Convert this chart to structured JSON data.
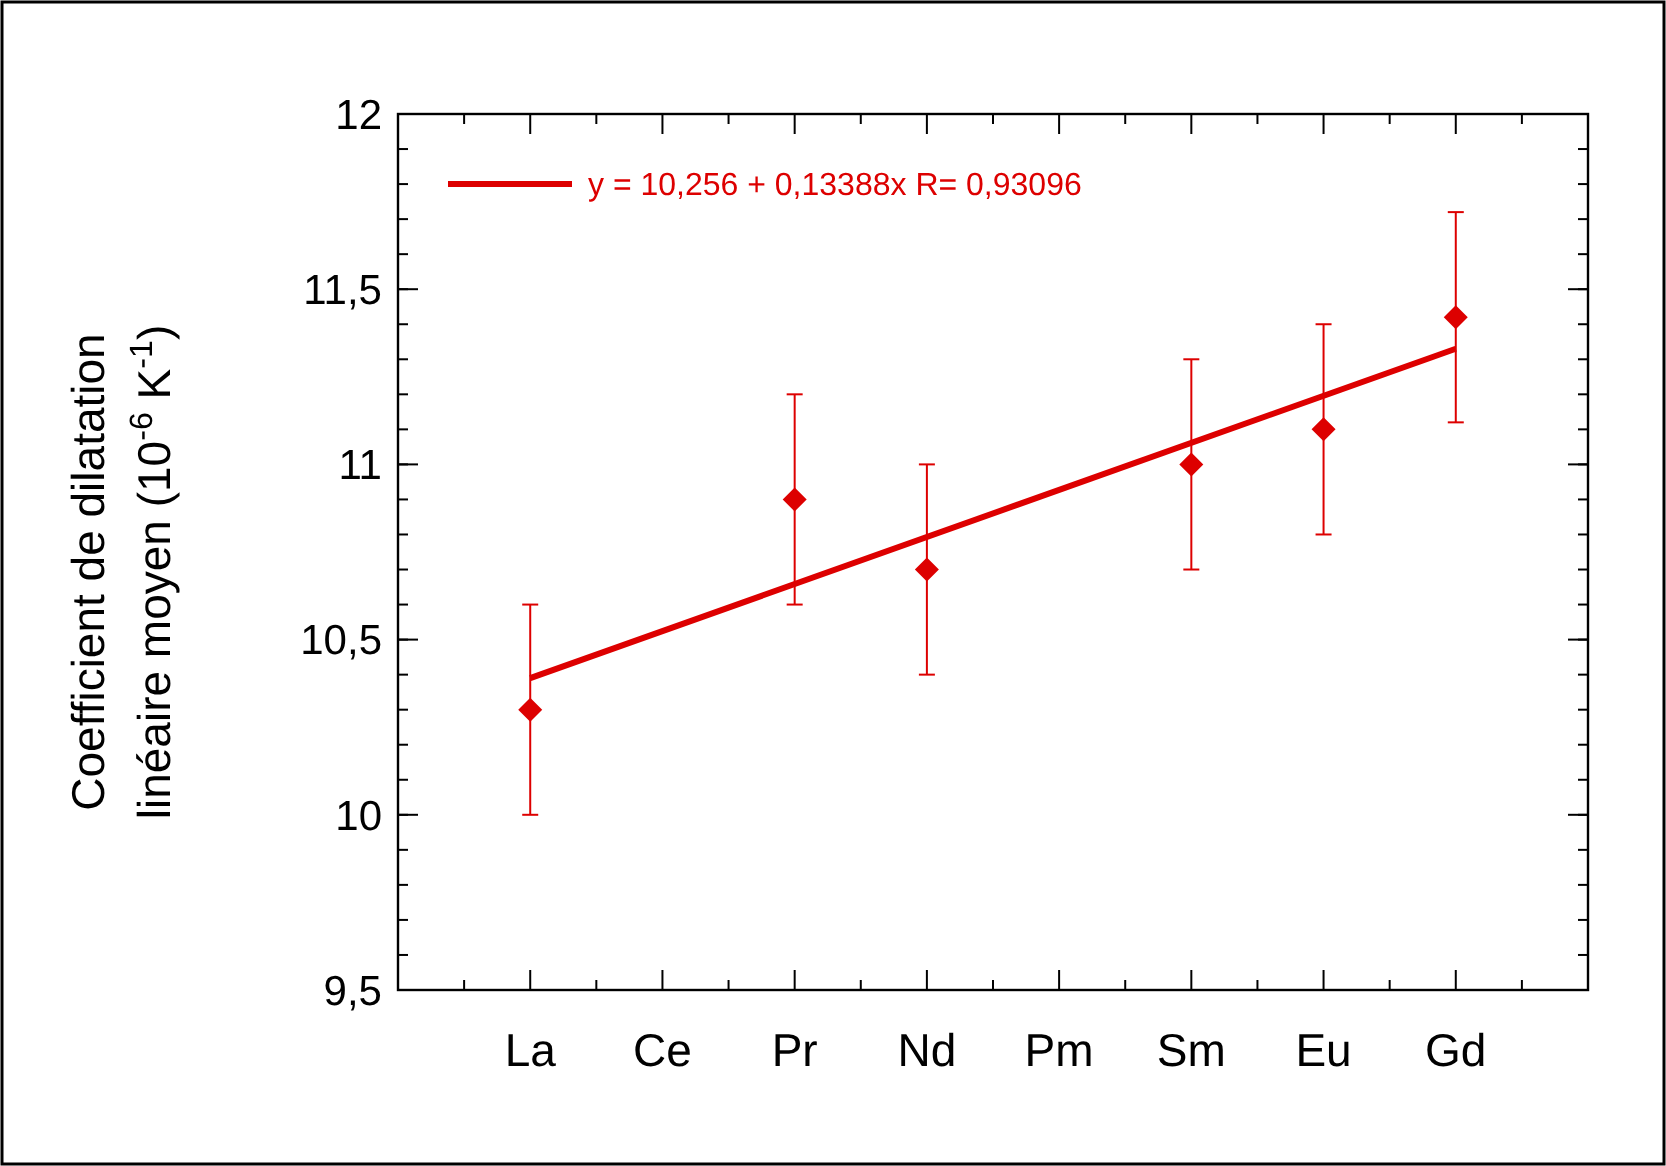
{
  "chart_data": {
    "type": "scatter",
    "categories": [
      "La",
      "Ce",
      "Pr",
      "Nd",
      "Pm",
      "Sm",
      "Eu",
      "Gd"
    ],
    "ylabel": "Coefficient de dilatation linéaire moyen (10$^{-6}$ K$^{-1}$)",
    "ylim": [
      9.5,
      12
    ],
    "yticks": [
      {
        "value": 9.5,
        "label": "9,5"
      },
      10,
      {
        "value": 10.5,
        "label": "10,5"
      },
      11,
      {
        "value": 11.5,
        "label": "11,5"
      },
      12
    ],
    "series": [
      {
        "color": "#dd0000",
        "marker": "diamond",
        "values": [
          10.3,
          null,
          10.9,
          10.7,
          null,
          11.0,
          11.1,
          11.42
        ],
        "errors": [
          0.3,
          null,
          0.3,
          0.3,
          null,
          0.3,
          0.3,
          0.3
        ]
      },
      {
        "type": "line",
        "name": "y = 10,256 + 0,13388x R= 0,93096",
        "color": "#dd0000",
        "line_style": "solid",
        "x": [
          "La",
          "Gd"
        ],
        "values": [
          10.39,
          11.33
        ]
      }
    ],
    "legend": "top left",
    "grid": false
  }
}
